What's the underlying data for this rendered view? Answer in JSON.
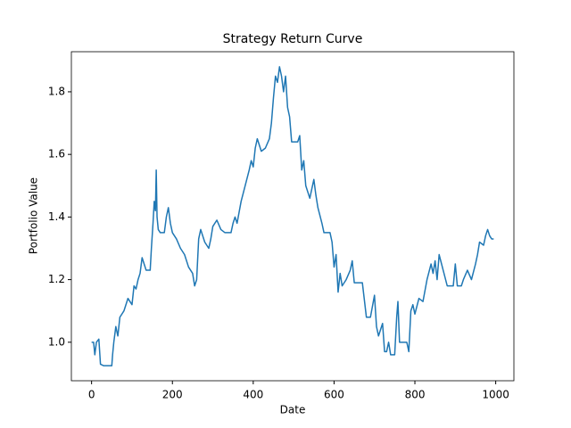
{
  "chart_data": {
    "type": "line",
    "title": "Strategy Return Curve",
    "x_label": "Date",
    "y_label": "Portfolio Value",
    "series": [
      {
        "color": "#1f77b4",
        "x": [
          0,
          5,
          8,
          12,
          18,
          22,
          30,
          50,
          52,
          55,
          60,
          65,
          70,
          80,
          90,
          100,
          105,
          110,
          115,
          120,
          125,
          130,
          135,
          145,
          148,
          152,
          155,
          158,
          160,
          162,
          165,
          170,
          180,
          185,
          190,
          195,
          200,
          210,
          220,
          230,
          240,
          250,
          255,
          260,
          265,
          270,
          280,
          290,
          295,
          300,
          310,
          320,
          330,
          345,
          350,
          355,
          360,
          370,
          380,
          390,
          395,
          400,
          405,
          410,
          420,
          430,
          440,
          445,
          450,
          455,
          460,
          465,
          470,
          475,
          480,
          485,
          490,
          495,
          510,
          515,
          520,
          525,
          530,
          540,
          550,
          555,
          560,
          570,
          575,
          590,
          595,
          600,
          605,
          610,
          615,
          620,
          630,
          640,
          645,
          650,
          670,
          680,
          690,
          700,
          705,
          710,
          715,
          720,
          725,
          730,
          735,
          740,
          750,
          755,
          758,
          762,
          780,
          785,
          790,
          795,
          800,
          810,
          820,
          830,
          840,
          845,
          850,
          855,
          860,
          870,
          880,
          895,
          900,
          905,
          915,
          920,
          930,
          940,
          950,
          955,
          960,
          970,
          975,
          980,
          985,
          990,
          995
        ],
        "values": [
          1.0,
          1.0,
          0.96,
          1.0,
          1.01,
          0.93,
          0.925,
          0.925,
          0.96,
          1.0,
          1.05,
          1.02,
          1.08,
          1.1,
          1.14,
          1.12,
          1.18,
          1.17,
          1.2,
          1.22,
          1.27,
          1.25,
          1.23,
          1.23,
          1.3,
          1.38,
          1.45,
          1.42,
          1.55,
          1.4,
          1.36,
          1.35,
          1.35,
          1.4,
          1.43,
          1.38,
          1.35,
          1.33,
          1.3,
          1.28,
          1.24,
          1.22,
          1.18,
          1.2,
          1.33,
          1.36,
          1.32,
          1.3,
          1.33,
          1.37,
          1.39,
          1.36,
          1.35,
          1.35,
          1.38,
          1.4,
          1.38,
          1.45,
          1.5,
          1.55,
          1.58,
          1.56,
          1.62,
          1.65,
          1.61,
          1.62,
          1.65,
          1.7,
          1.78,
          1.85,
          1.83,
          1.88,
          1.85,
          1.8,
          1.85,
          1.75,
          1.72,
          1.64,
          1.64,
          1.66,
          1.55,
          1.58,
          1.5,
          1.46,
          1.52,
          1.47,
          1.43,
          1.38,
          1.35,
          1.35,
          1.32,
          1.24,
          1.28,
          1.16,
          1.22,
          1.18,
          1.2,
          1.23,
          1.26,
          1.19,
          1.19,
          1.08,
          1.08,
          1.15,
          1.05,
          1.02,
          1.04,
          1.06,
          0.97,
          0.97,
          1.0,
          0.96,
          0.96,
          1.08,
          1.13,
          1.0,
          1.0,
          0.97,
          1.1,
          1.12,
          1.09,
          1.14,
          1.13,
          1.2,
          1.25,
          1.22,
          1.26,
          1.2,
          1.28,
          1.23,
          1.18,
          1.18,
          1.25,
          1.18,
          1.18,
          1.2,
          1.23,
          1.2,
          1.25,
          1.28,
          1.32,
          1.31,
          1.34,
          1.36,
          1.34,
          1.33,
          1.33
        ]
      }
    ],
    "xlim": [
      -50,
      1045
    ],
    "ylim": [
      0.877,
      1.928
    ],
    "xticks": [
      0,
      200,
      400,
      600,
      800,
      1000
    ],
    "yticks": [
      {
        "value": 1.0,
        "label": "1.0"
      },
      1.2,
      1.4,
      1.6,
      1.8
    ]
  }
}
